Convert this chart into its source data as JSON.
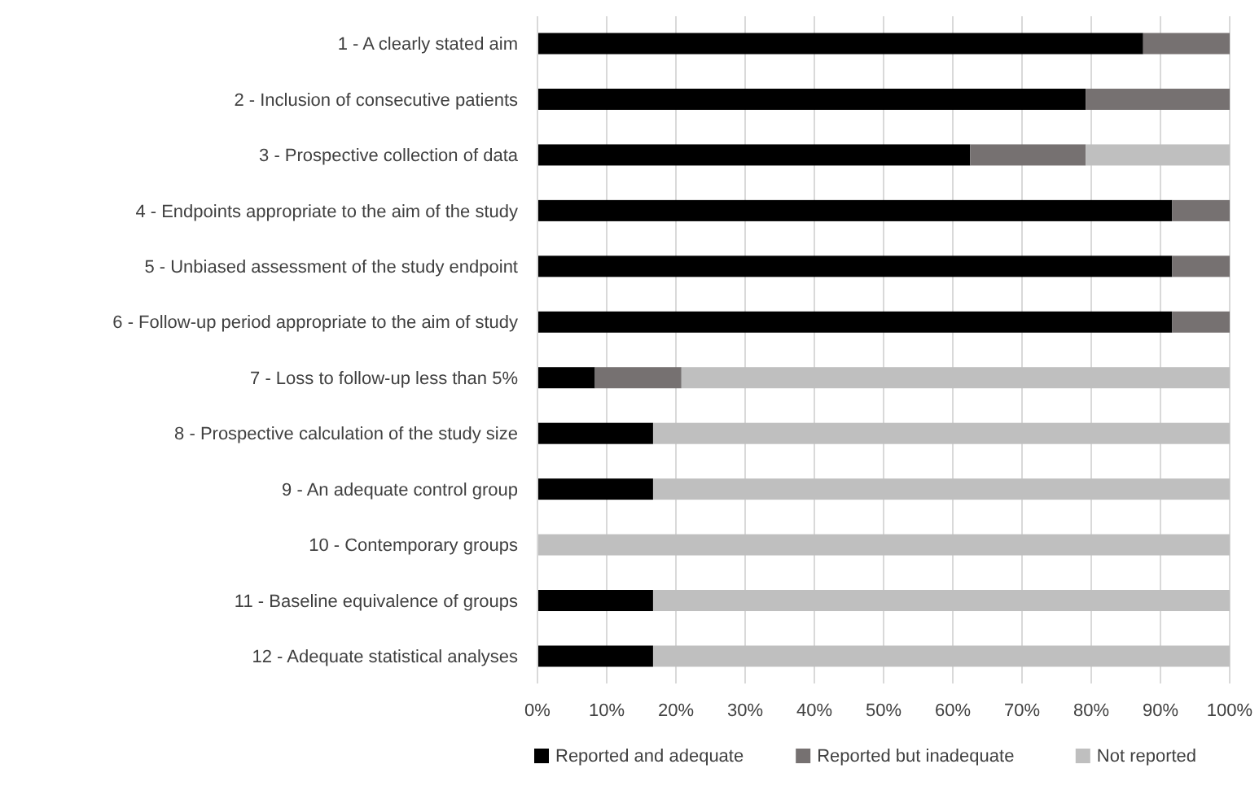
{
  "chart_data": {
    "type": "bar",
    "orientation": "horizontal",
    "stacked": true,
    "categories": [
      "1 - A clearly stated aim",
      "2 - Inclusion of consecutive patients",
      "3 - Prospective collection of data",
      "4 - Endpoints appropriate to the aim of the study",
      "5 - Unbiased assessment of the study endpoint",
      "6 - Follow-up period appropriate to the aim of study",
      "7 - Loss to follow-up less than 5%",
      "8 - Prospective calculation of the study size",
      "9 - An adequate control group",
      "10 - Contemporary groups",
      "11 - Baseline equivalence of groups",
      "12 - Adequate statistical analyses"
    ],
    "series": [
      {
        "name": "Reported and adequate",
        "color": "#000000",
        "values": [
          87.5,
          79.2,
          62.5,
          91.7,
          91.7,
          91.7,
          8.3,
          16.7,
          16.7,
          0,
          16.7,
          16.7
        ]
      },
      {
        "name": "Reported but inadequate",
        "color": "#767171",
        "values": [
          12.5,
          20.8,
          16.7,
          8.3,
          8.3,
          8.3,
          12.5,
          0,
          0,
          0,
          0,
          0
        ]
      },
      {
        "name": "Not reported",
        "color": "#bfbfbf",
        "values": [
          0,
          0,
          20.8,
          0,
          0,
          0,
          79.2,
          83.3,
          83.3,
          100,
          83.3,
          83.3
        ]
      }
    ],
    "xlim": [
      0,
      100
    ],
    "xticks": [
      {
        "value": 0,
        "label": "0%"
      },
      {
        "value": 10,
        "label": "10%"
      },
      {
        "value": 20,
        "label": "20%"
      },
      {
        "value": 30,
        "label": "30%"
      },
      {
        "value": 40,
        "label": "40%"
      },
      {
        "value": 50,
        "label": "50%"
      },
      {
        "value": 60,
        "label": "60%"
      },
      {
        "value": 70,
        "label": "70%"
      },
      {
        "value": 80,
        "label": "80%"
      },
      {
        "value": 90,
        "label": "90%"
      },
      {
        "value": 100,
        "label": "100%"
      }
    ],
    "grid": "x",
    "legend": "bottom"
  }
}
